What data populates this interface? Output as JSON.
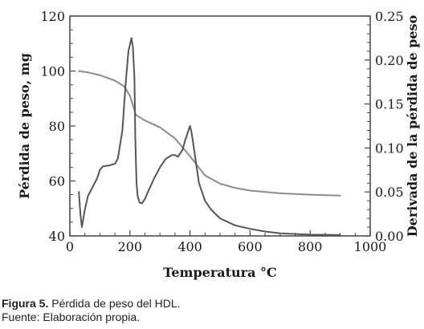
{
  "chart_data": {
    "type": "line",
    "xlabel": "Temperatura °C",
    "ylabel_left": "Pérdida de peso, mg",
    "ylabel_right": "Derivada de la pérdida de peso",
    "xlim": [
      0,
      1000
    ],
    "ylim_left": [
      40,
      120
    ],
    "ylim_right": [
      0.0,
      0.25
    ],
    "x_ticks": [
      "0",
      "200",
      "400",
      "600",
      "800",
      "1000"
    ],
    "y_left_ticks": [
      "40",
      "60",
      "80",
      "100",
      "120"
    ],
    "y_right_ticks": [
      "0.00",
      "0.05",
      "0.10",
      "0.15",
      "0.20",
      "0.25"
    ],
    "grid": false,
    "series": [
      {
        "axis": "left",
        "color": "#8c8c8c",
        "x": [
          30,
          60,
          100,
          150,
          180,
          200,
          220,
          250,
          300,
          350,
          400,
          450,
          500,
          550,
          600,
          700,
          800,
          900
        ],
        "y": [
          100,
          99.5,
          98.5,
          96.5,
          94.5,
          91,
          84,
          82,
          79.5,
          75.5,
          69,
          62,
          59,
          57.5,
          56.5,
          55.5,
          55,
          54.7
        ]
      },
      {
        "axis": "right",
        "color": "#555555",
        "x": [
          30,
          35,
          40,
          50,
          60,
          75,
          90,
          100,
          110,
          130,
          150,
          160,
          175,
          185,
          195,
          205,
          210,
          215,
          218,
          222,
          226,
          232,
          240,
          250,
          260,
          280,
          300,
          320,
          340,
          350,
          360,
          375,
          385,
          395,
          400,
          405,
          415,
          430,
          450,
          470,
          500,
          550,
          600,
          650,
          700,
          800,
          900
        ],
        "y": [
          0.05,
          0.025,
          0.01,
          0.03,
          0.045,
          0.055,
          0.065,
          0.075,
          0.079,
          0.08,
          0.082,
          0.088,
          0.12,
          0.17,
          0.21,
          0.225,
          0.215,
          0.18,
          0.11,
          0.06,
          0.045,
          0.038,
          0.037,
          0.042,
          0.05,
          0.065,
          0.078,
          0.088,
          0.092,
          0.092,
          0.09,
          0.098,
          0.11,
          0.12,
          0.125,
          0.118,
          0.095,
          0.06,
          0.04,
          0.03,
          0.02,
          0.012,
          0.008,
          0.005,
          0.003,
          0.0015,
          0.001
        ]
      }
    ]
  },
  "caption": {
    "figure_label": "Figura 5.",
    "figure_text": " Pérdida de peso del HDL.",
    "source": "Fuente: Elaboración propia."
  }
}
